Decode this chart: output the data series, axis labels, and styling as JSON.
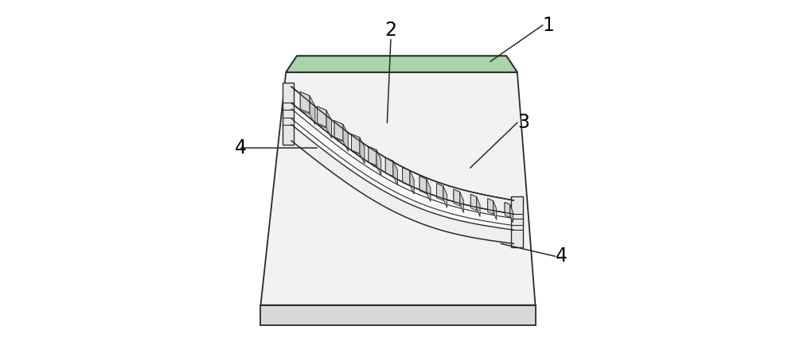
{
  "bg_color": "#ffffff",
  "lc": "#2a2a2a",
  "fc_body": "#f0f0f0",
  "fc_top": "#e8e8e8",
  "fc_dark": "#d0d0d0",
  "fc_green": "#90c890",
  "fc_white": "#ffffff",
  "label_color": "#000000",
  "label_fs": 17,
  "figsize": [
    10.0,
    4.54
  ],
  "dpi": 100,
  "n_teeth": 13
}
